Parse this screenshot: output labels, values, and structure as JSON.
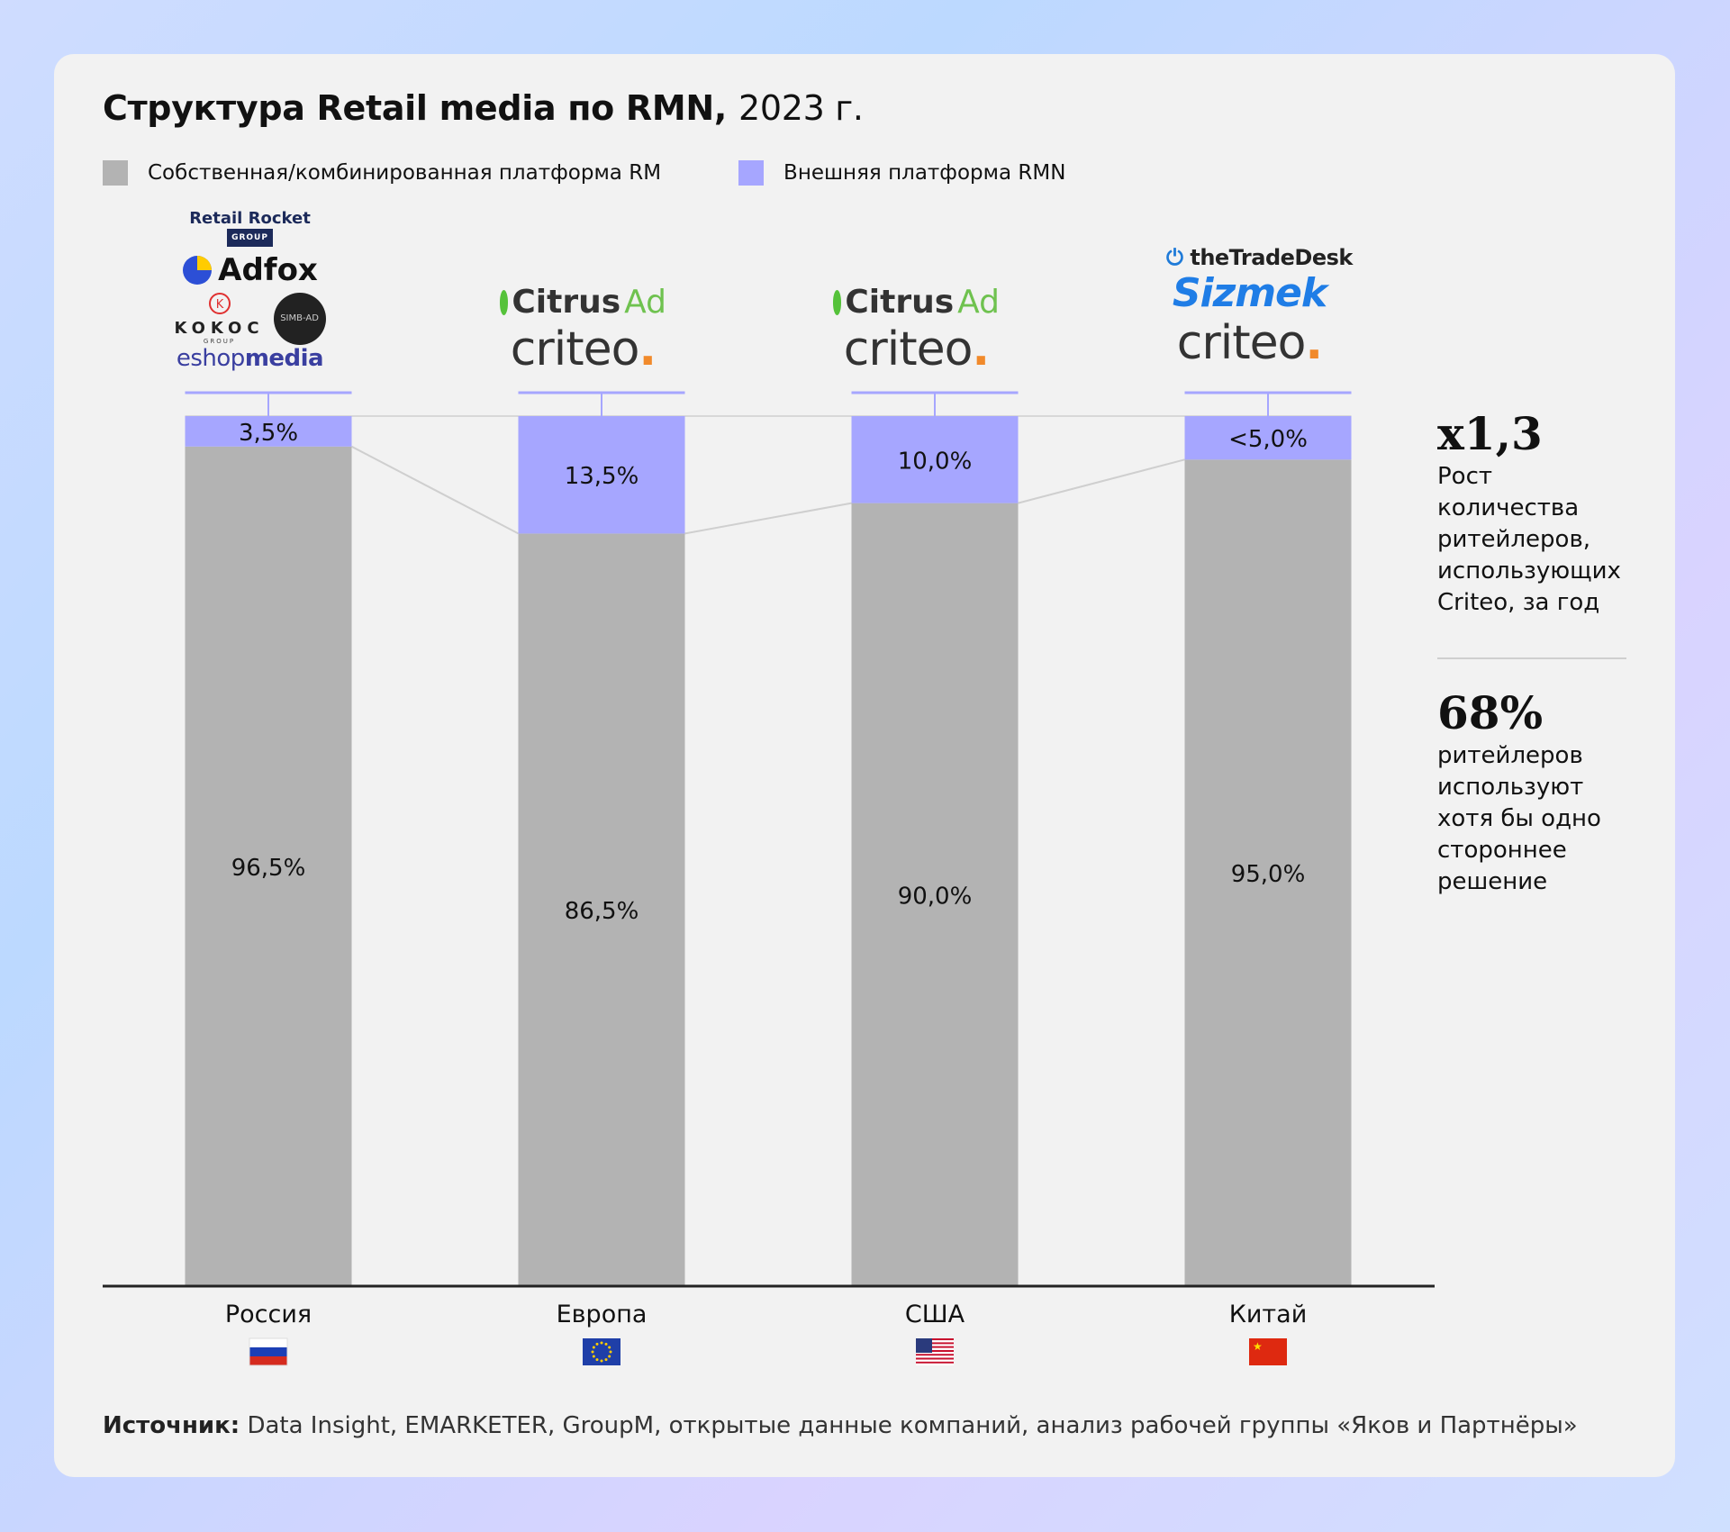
{
  "title": {
    "main": "Структура Retail media по RMN,",
    "year": "2023 г."
  },
  "colors": {
    "own": "#b3b3b3",
    "external": "#a6a6ff",
    "axis": "#222222",
    "connector": "#cfcfcf"
  },
  "legend": [
    {
      "label": "Собственная/комбинированная платформа RM",
      "color": "#b3b3b3"
    },
    {
      "label": "Внешняя платформа RMN",
      "color": "#a6a6ff"
    }
  ],
  "chart_data": {
    "type": "bar",
    "stacked": true,
    "categories": [
      "Россия",
      "Европа",
      "США",
      "Китай"
    ],
    "series": [
      {
        "name": "Собственная/комбинированная платформа RM",
        "values": [
          96.5,
          86.5,
          90.0,
          95.0
        ],
        "labels": [
          "96,5%",
          "86,5%",
          "90,0%",
          "95,0%"
        ]
      },
      {
        "name": "Внешняя платформа RMN",
        "values": [
          3.5,
          13.5,
          10.0,
          5.0
        ],
        "labels": [
          "3,5%",
          "13,5%",
          "10,0%",
          "<5,0%"
        ]
      }
    ],
    "ylim": [
      0,
      100
    ],
    "flags": [
      "russia-flag",
      "eu-flag",
      "usa-flag",
      "china-flag"
    ]
  },
  "logos": {
    "russia": {
      "retail_rocket": "Retail Rocket",
      "retail_rocket_group": "GROUP",
      "adfox": "Adfox",
      "kokoc": "KOKOC",
      "kokoc_group": "GROUP",
      "simb": "SIMB-AD",
      "eshop_1": "eshop",
      "eshop_2": "media"
    },
    "europe": {
      "citrus_1": "Citrus",
      "citrus_2": "Ad",
      "criteo": "criteo"
    },
    "usa": {
      "citrus_1": "Citrus",
      "citrus_2": "Ad",
      "criteo": "criteo"
    },
    "china": {
      "ttd": "theTradeDesk",
      "sizmek": "Sizmek",
      "criteo": "criteo"
    }
  },
  "side": {
    "stat1_value": "x1,3",
    "stat1_text": [
      "Рост",
      "количества",
      "ритейлеров,",
      "использующих",
      "Criteo, за год"
    ],
    "stat2_value": "68%",
    "stat2_text": [
      "ритейлеров",
      "используют",
      "хотя бы одно",
      "стороннее",
      "решение"
    ]
  },
  "source": {
    "label": "Источник:",
    "text": "Data Insight, EMARKETER, GroupM, открытые данные компаний, анализ рабочей группы «Яков и Партнёры»"
  }
}
